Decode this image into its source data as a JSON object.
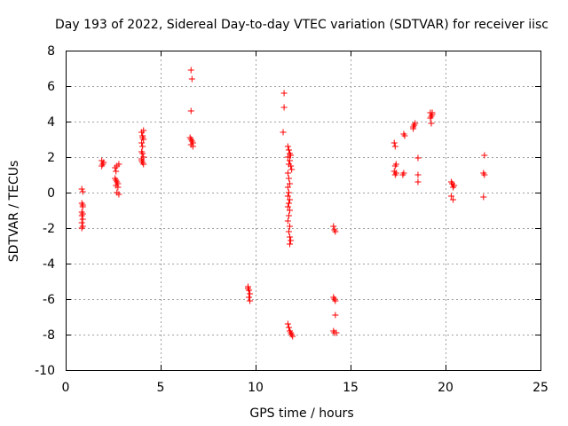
{
  "chart_data": {
    "type": "scatter",
    "title": "Day 193 of 2022, Sidereal Day-to-day VTEC variation (SDTVAR) for receiver iisc",
    "xlabel": "GPS time / hours",
    "ylabel": "SDTVAR / TECUs",
    "xlim": [
      0,
      25
    ],
    "ylim": [
      -10,
      8
    ],
    "xticks": [
      0,
      5,
      10,
      15,
      20,
      25
    ],
    "yticks": [
      -10,
      -8,
      -6,
      -4,
      -2,
      0,
      2,
      4,
      6,
      8
    ],
    "grid": true,
    "marker": "+",
    "color": "#ff0000",
    "series": [
      {
        "name": "SDTVAR",
        "points": [
          [
            0.85,
            0.2
          ],
          [
            0.9,
            0.05
          ],
          [
            0.85,
            -0.6
          ],
          [
            0.9,
            -0.7
          ],
          [
            0.85,
            -1.1
          ],
          [
            0.9,
            -1.2
          ],
          [
            0.85,
            -1.3
          ],
          [
            0.9,
            -1.5
          ],
          [
            0.85,
            -1.7
          ],
          [
            0.9,
            -1.9
          ],
          [
            0.85,
            -2.0
          ],
          [
            0.9,
            -0.8
          ],
          [
            1.9,
            1.8
          ],
          [
            1.95,
            1.6
          ],
          [
            1.9,
            1.5
          ],
          [
            2.0,
            1.7
          ],
          [
            2.6,
            1.4
          ],
          [
            2.7,
            1.5
          ],
          [
            2.8,
            1.6
          ],
          [
            2.65,
            1.2
          ],
          [
            2.6,
            0.8
          ],
          [
            2.7,
            0.6
          ],
          [
            2.65,
            0.4
          ],
          [
            2.75,
            0.3
          ],
          [
            2.7,
            0.0
          ],
          [
            2.8,
            -0.1
          ],
          [
            2.75,
            0.5
          ],
          [
            2.65,
            0.7
          ],
          [
            4.0,
            3.4
          ],
          [
            4.05,
            3.2
          ],
          [
            4.1,
            3.0
          ],
          [
            4.0,
            2.8
          ],
          [
            4.05,
            2.6
          ],
          [
            4.1,
            3.5
          ],
          [
            4.0,
            2.3
          ],
          [
            4.05,
            2.2
          ],
          [
            4.1,
            2.0
          ],
          [
            4.0,
            1.8
          ],
          [
            4.05,
            1.7
          ],
          [
            4.1,
            1.6
          ],
          [
            4.0,
            1.9
          ],
          [
            4.05,
            3.1
          ],
          [
            6.6,
            6.9
          ],
          [
            6.65,
            6.4
          ],
          [
            6.6,
            4.6
          ],
          [
            6.55,
            3.1
          ],
          [
            6.6,
            3.0
          ],
          [
            6.65,
            2.9
          ],
          [
            6.7,
            2.8
          ],
          [
            6.6,
            2.7
          ],
          [
            6.7,
            2.6
          ],
          [
            9.6,
            -5.3
          ],
          [
            9.65,
            -5.5
          ],
          [
            9.7,
            -5.7
          ],
          [
            9.65,
            -5.9
          ],
          [
            9.7,
            -6.1
          ],
          [
            9.6,
            -5.4
          ],
          [
            11.5,
            5.6
          ],
          [
            11.5,
            4.8
          ],
          [
            11.45,
            3.4
          ],
          [
            11.7,
            2.6
          ],
          [
            11.75,
            2.4
          ],
          [
            11.8,
            2.2
          ],
          [
            11.7,
            2.0
          ],
          [
            11.8,
            1.8
          ],
          [
            11.75,
            1.6
          ],
          [
            11.85,
            1.5
          ],
          [
            11.7,
            1.1
          ],
          [
            11.75,
            0.8
          ],
          [
            11.8,
            0.5
          ],
          [
            11.7,
            0.3
          ],
          [
            11.75,
            0.0
          ],
          [
            11.7,
            -0.2
          ],
          [
            11.8,
            -0.4
          ],
          [
            11.75,
            -0.6
          ],
          [
            11.7,
            -0.8
          ],
          [
            11.8,
            -1.0
          ],
          [
            11.75,
            -1.3
          ],
          [
            11.7,
            -1.6
          ],
          [
            11.8,
            -1.9
          ],
          [
            11.75,
            -2.2
          ],
          [
            11.8,
            -2.5
          ],
          [
            11.85,
            -2.7
          ],
          [
            11.8,
            -2.9
          ],
          [
            11.9,
            1.3
          ],
          [
            11.85,
            2.1
          ],
          [
            11.7,
            -7.4
          ],
          [
            11.75,
            -7.6
          ],
          [
            11.8,
            -7.8
          ],
          [
            11.85,
            -7.9
          ],
          [
            11.9,
            -8.0
          ],
          [
            11.95,
            -8.1
          ],
          [
            14.1,
            -1.9
          ],
          [
            14.15,
            -2.1
          ],
          [
            14.2,
            -2.2
          ],
          [
            14.1,
            -5.9
          ],
          [
            14.15,
            -6.0
          ],
          [
            14.2,
            -6.1
          ],
          [
            14.2,
            -6.9
          ],
          [
            14.1,
            -7.8
          ],
          [
            14.15,
            -7.9
          ],
          [
            14.25,
            -7.9
          ],
          [
            17.3,
            2.8
          ],
          [
            17.35,
            2.6
          ],
          [
            17.4,
            1.6
          ],
          [
            17.35,
            1.5
          ],
          [
            17.3,
            1.2
          ],
          [
            17.4,
            1.1
          ],
          [
            17.35,
            1.0
          ],
          [
            17.8,
            3.3
          ],
          [
            17.85,
            3.2
          ],
          [
            17.8,
            1.1
          ],
          [
            17.75,
            1.0
          ],
          [
            18.3,
            3.7
          ],
          [
            18.35,
            3.8
          ],
          [
            18.4,
            3.9
          ],
          [
            18.3,
            3.6
          ],
          [
            18.55,
            1.95
          ],
          [
            18.55,
            1.0
          ],
          [
            18.55,
            0.6
          ],
          [
            19.2,
            4.5
          ],
          [
            19.25,
            4.3
          ],
          [
            19.3,
            4.5
          ],
          [
            19.2,
            4.2
          ],
          [
            19.25,
            3.9
          ],
          [
            19.3,
            4.4
          ],
          [
            20.3,
            0.6
          ],
          [
            20.35,
            0.5
          ],
          [
            20.4,
            0.3
          ],
          [
            20.45,
            0.4
          ],
          [
            20.3,
            -0.2
          ],
          [
            20.4,
            -0.4
          ],
          [
            22.05,
            2.1
          ],
          [
            22.0,
            1.1
          ],
          [
            22.05,
            1.0
          ],
          [
            22.0,
            -0.25
          ]
        ]
      }
    ]
  }
}
